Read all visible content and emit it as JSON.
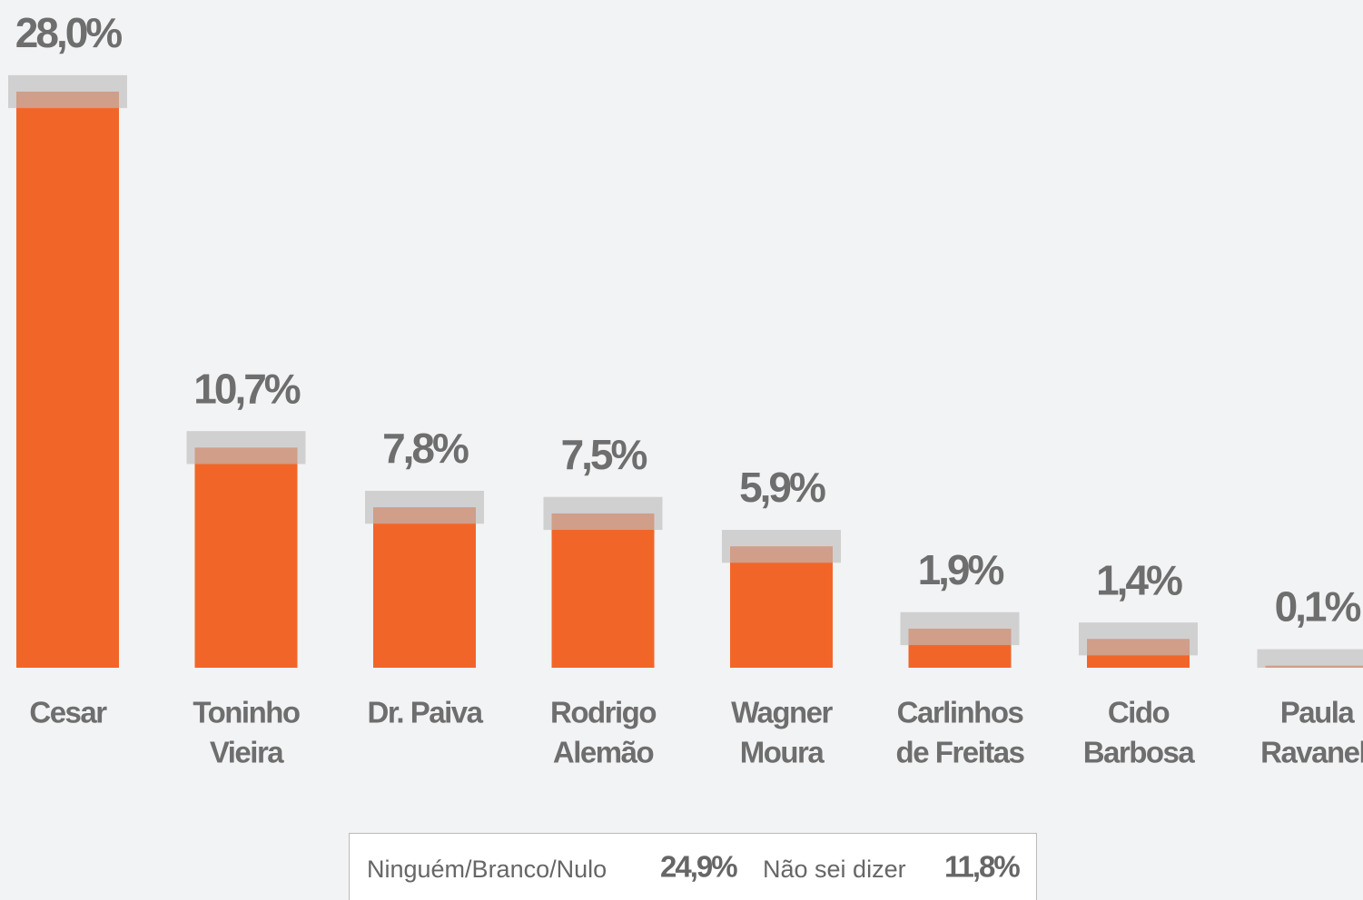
{
  "chart_data": {
    "type": "bar",
    "categories": [
      [
        "Cesar"
      ],
      [
        "Toninho",
        "Vieira"
      ],
      [
        "Dr. Paiva"
      ],
      [
        "Rodrigo",
        "Alemão"
      ],
      [
        "Wagner",
        "Moura"
      ],
      [
        "Carlinhos",
        "de Freitas"
      ],
      [
        "Cido",
        "Barbosa"
      ],
      [
        "Paula",
        "Ravanell"
      ]
    ],
    "values": [
      28.0,
      10.7,
      7.8,
      7.5,
      5.9,
      1.9,
      1.4,
      0.1
    ],
    "value_labels": [
      "28,0%",
      "10,7%",
      "7,8%",
      "7,5%",
      "5,9%",
      "1,9%",
      "1,4%",
      "0,1%"
    ],
    "margin": 0.8,
    "color": "#f26529",
    "margin_color": "#bdbdbd",
    "footer": [
      {
        "label": "Ninguém/Branco/Nulo",
        "value_label": "24,9%"
      },
      {
        "label": "Não sei dizer",
        "value_label": "11,8%"
      }
    ]
  }
}
